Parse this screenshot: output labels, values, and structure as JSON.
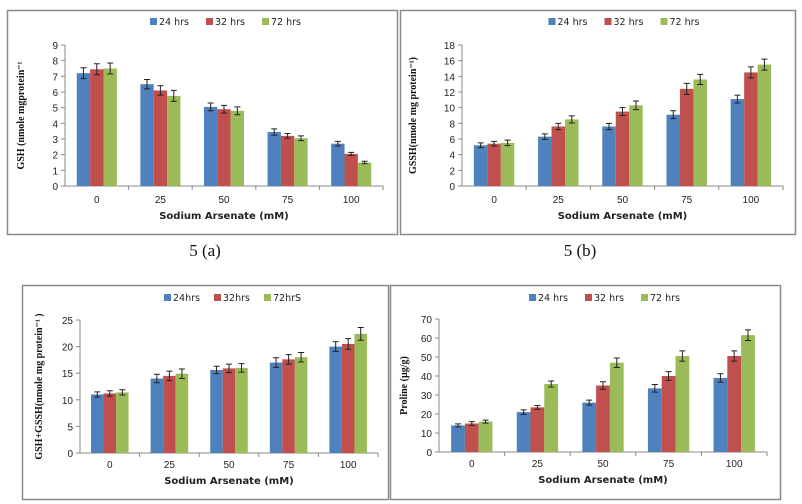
{
  "colors": {
    "24h": "#4f81bd",
    "32h": "#c0504d",
    "72h": "#9bbb59"
  },
  "chart_data": [
    {
      "type": "bar",
      "caption": "5 (a)",
      "xlabel": "Sodium Arsenate (mM)",
      "ylabel": "GSH (nmole mgprotein⁻¹",
      "categories": [
        "0",
        "25",
        "50",
        "75",
        "100"
      ],
      "ylim": [
        0,
        9
      ],
      "ystep": 1,
      "grid": false,
      "legend": "top",
      "series": [
        {
          "name": "24 hrs",
          "values": [
            7.2,
            6.5,
            5.05,
            3.45,
            2.7
          ],
          "errors": [
            0.35,
            0.3,
            0.25,
            0.2,
            0.15
          ]
        },
        {
          "name": "32 hrs",
          "values": [
            7.45,
            6.1,
            4.9,
            3.2,
            2.05
          ],
          "errors": [
            0.35,
            0.3,
            0.25,
            0.15,
            0.1
          ]
        },
        {
          "name": "72 hrs",
          "values": [
            7.5,
            5.75,
            4.8,
            3.05,
            1.5
          ],
          "errors": [
            0.35,
            0.35,
            0.25,
            0.15,
            0.08
          ]
        }
      ]
    },
    {
      "type": "bar",
      "caption": "5 (b)",
      "xlabel": "Sodium Arsenate (mM)",
      "ylabel": "GSSH(nmole mg protein⁻¹)",
      "categories": [
        "0",
        "25",
        "50",
        "75",
        "100"
      ],
      "ylim": [
        0,
        18
      ],
      "ystep": 2,
      "grid": false,
      "legend": "top",
      "series": [
        {
          "name": "24 hrs",
          "values": [
            5.2,
            6.3,
            7.6,
            9.1,
            11.1
          ],
          "errors": [
            0.3,
            0.35,
            0.4,
            0.5,
            0.5
          ]
        },
        {
          "name": "32 hrs",
          "values": [
            5.4,
            7.6,
            9.5,
            12.4,
            14.5
          ],
          "errors": [
            0.3,
            0.4,
            0.5,
            0.7,
            0.7
          ]
        },
        {
          "name": "72 hrs",
          "values": [
            5.5,
            8.5,
            10.3,
            13.6,
            15.5
          ],
          "errors": [
            0.35,
            0.45,
            0.55,
            0.65,
            0.7
          ]
        }
      ]
    },
    {
      "type": "bar",
      "caption": "",
      "xlabel": "Sodium Arsenate (mM)",
      "ylabel": "GSH+GSSH(nmole mg protein⁻¹ )",
      "categories": [
        "0",
        "25",
        "50",
        "75",
        "100"
      ],
      "ylim": [
        0,
        25
      ],
      "ystep": 5,
      "grid": false,
      "legend": "top",
      "series": [
        {
          "name": "24hrs",
          "values": [
            11,
            14,
            15.6,
            17,
            20
          ],
          "errors": [
            0.5,
            0.8,
            0.7,
            0.9,
            0.9
          ]
        },
        {
          "name": "32hrs",
          "values": [
            11.2,
            14.5,
            15.9,
            17.6,
            20.5
          ],
          "errors": [
            0.5,
            0.9,
            0.8,
            0.9,
            1.0
          ]
        },
        {
          "name": "72hrS",
          "values": [
            11.4,
            14.9,
            16,
            18,
            22.4
          ],
          "errors": [
            0.5,
            0.9,
            0.8,
            0.9,
            1.2
          ]
        }
      ]
    },
    {
      "type": "bar",
      "caption": "",
      "xlabel": "Sodium Arsenate (mM)",
      "ylabel": "Proline (µg/g)",
      "categories": [
        "0",
        "25",
        "50",
        "75",
        "100"
      ],
      "ylim": [
        0,
        70
      ],
      "ystep": 10,
      "grid": false,
      "legend": "top",
      "series": [
        {
          "name": "24 hrs",
          "values": [
            14,
            21,
            26,
            33.5,
            39
          ],
          "errors": [
            0.8,
            1.2,
            1.3,
            2.0,
            2.2
          ]
        },
        {
          "name": "32 hrs",
          "values": [
            15,
            23.5,
            35,
            40,
            50.5
          ],
          "errors": [
            1.0,
            1.0,
            2.0,
            2.3,
            2.7
          ]
        },
        {
          "name": "72 hrs",
          "values": [
            16,
            35.8,
            47,
            50.5,
            61.5
          ],
          "errors": [
            0.8,
            1.6,
            2.5,
            2.7,
            2.8
          ]
        }
      ]
    }
  ]
}
